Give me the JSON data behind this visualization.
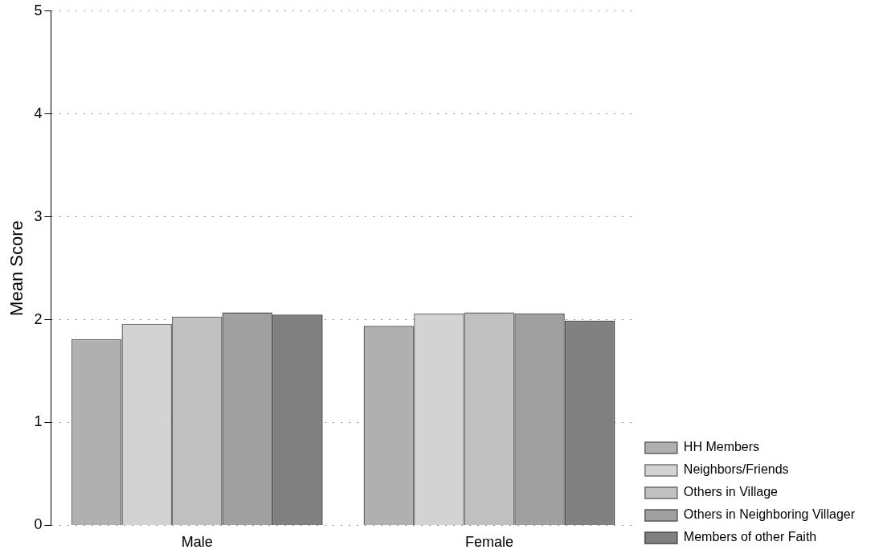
{
  "chart_data": {
    "type": "bar",
    "ylabel": "Mean Score",
    "categories": [
      "Male",
      "Female"
    ],
    "series": [
      {
        "name": "HH Members",
        "color": "#b0b0b0",
        "values": [
          1.81,
          1.94
        ]
      },
      {
        "name": "Neighbors/Friends",
        "color": "#d3d3d3",
        "values": [
          1.96,
          2.06
        ]
      },
      {
        "name": "Others in Village",
        "color": "#c0c0c0",
        "values": [
          2.03,
          2.07
        ]
      },
      {
        "name": "Others in Neighboring Villager",
        "color": "#a0a0a0",
        "values": [
          2.07,
          2.06
        ]
      },
      {
        "name": "Members of other Faith",
        "color": "#808080",
        "values": [
          2.05,
          1.99
        ]
      }
    ],
    "ylim": [
      0,
      5
    ],
    "yticks": [
      0,
      1,
      2,
      3,
      4,
      5
    ],
    "grid": "y",
    "legend": "bottom right"
  }
}
